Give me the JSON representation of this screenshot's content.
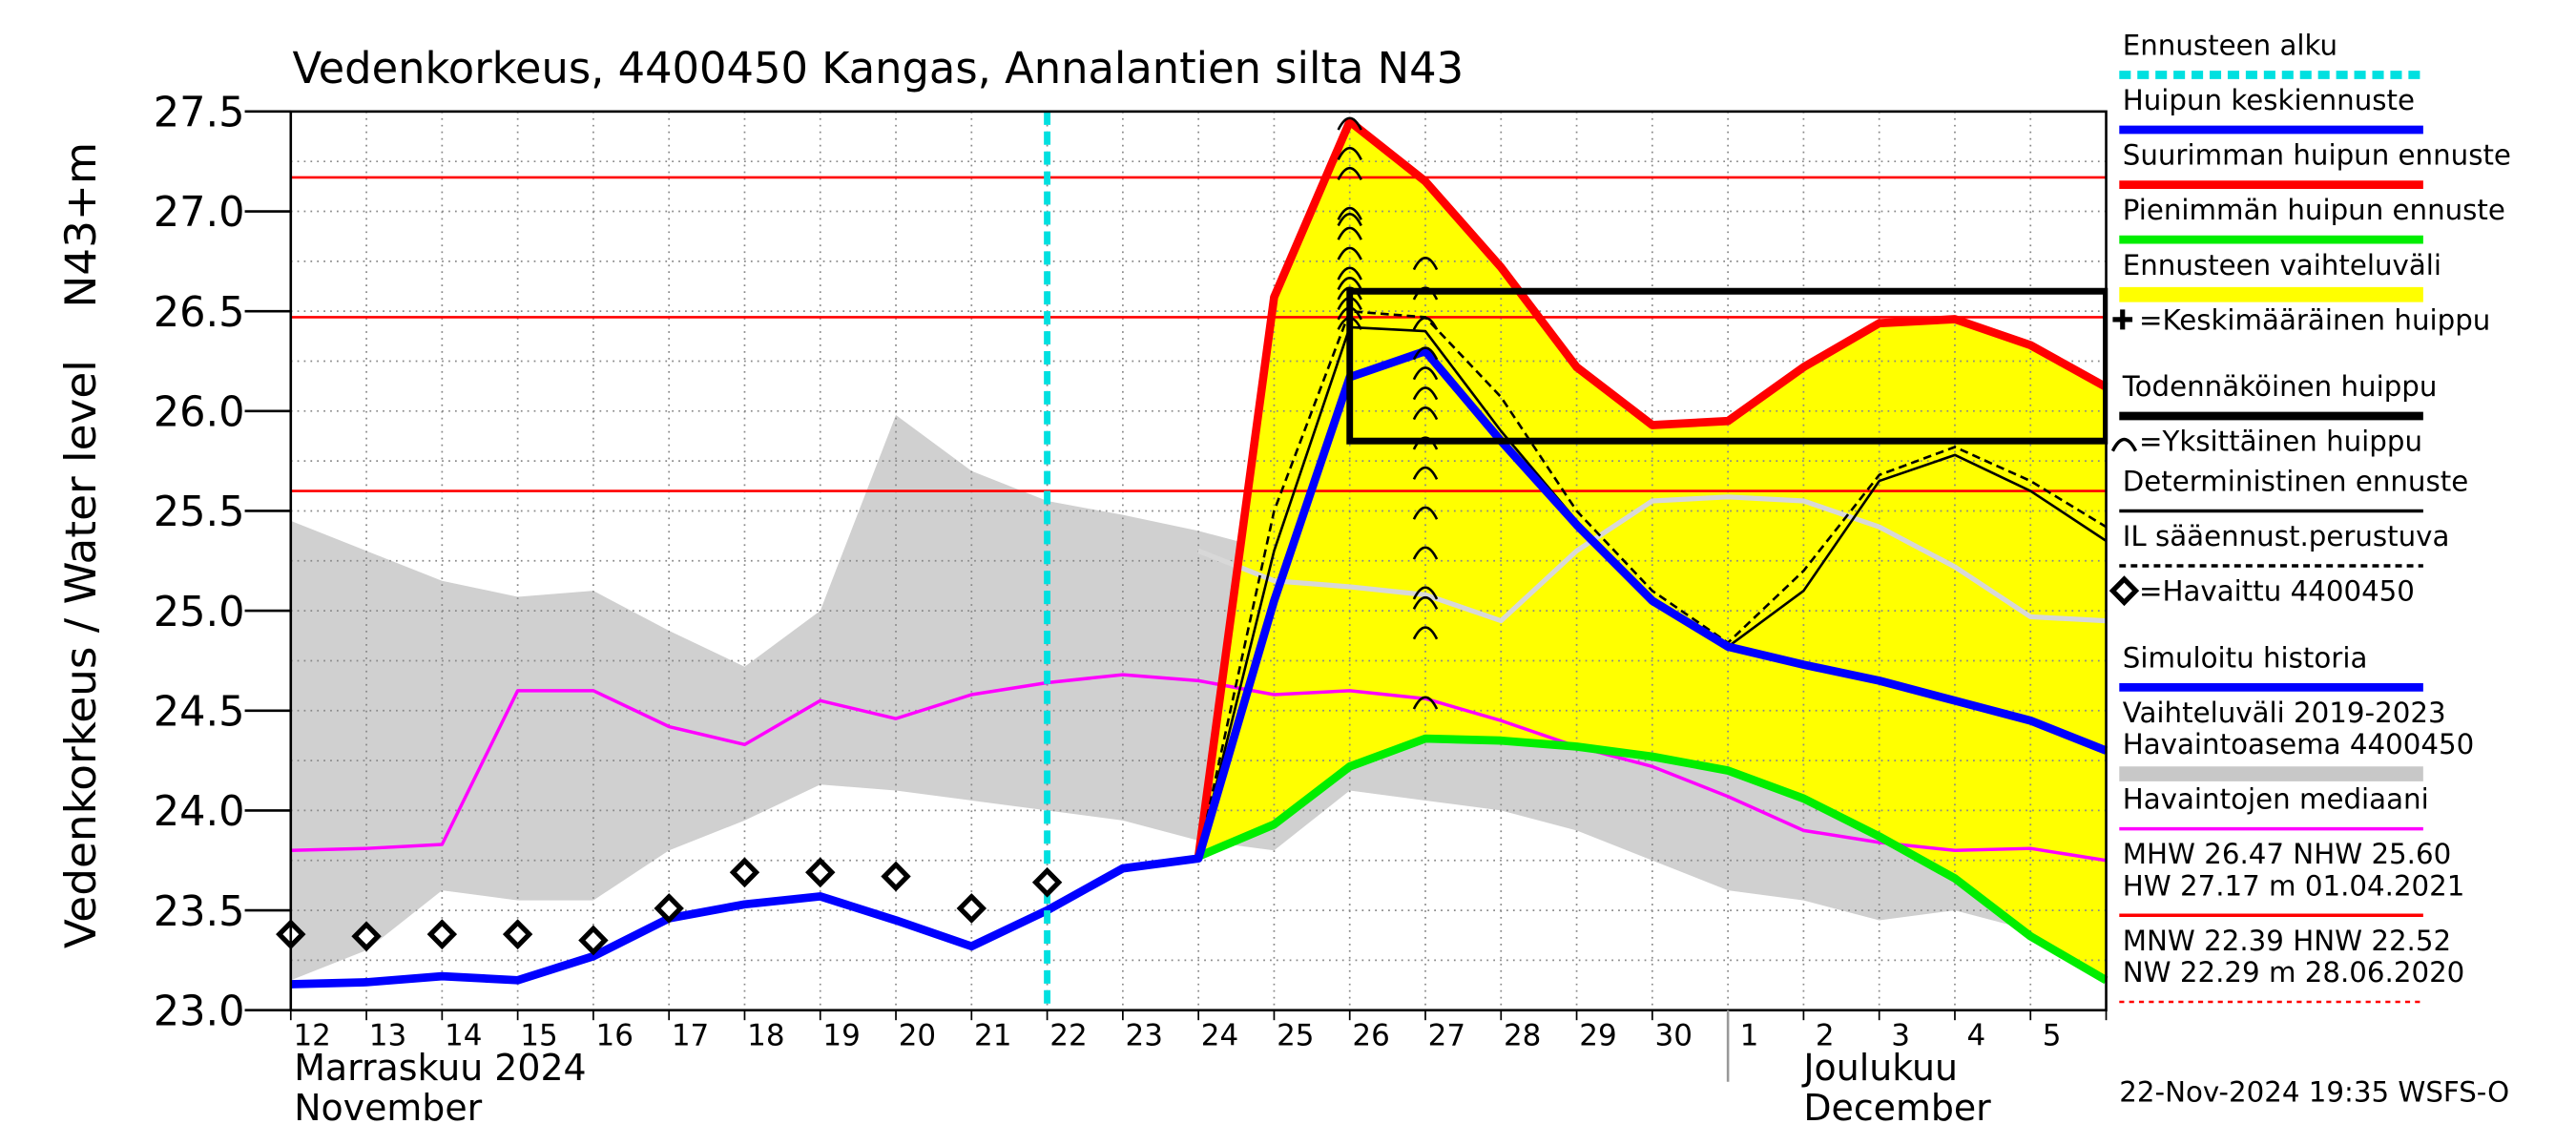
{
  "chart_data": {
    "type": "line",
    "title": "Vedenkorkeus, 4400450 Kangas, Annalantien silta N43",
    "ylabel": "Vedenkorkeus / Water level",
    "ylabel2": "N43+m",
    "categories": [
      "12",
      "13",
      "14",
      "15",
      "16",
      "17",
      "18",
      "19",
      "20",
      "21",
      "22",
      "23",
      "24",
      "25",
      "26",
      "27",
      "28",
      "29",
      "30",
      "1",
      "2",
      "3",
      "4",
      "5",
      null
    ],
    "month_labels": [
      {
        "lines": [
          "Marraskuu 2024",
          "November"
        ],
        "at": "12"
      },
      {
        "lines": [
          "Joulukuu",
          "December"
        ],
        "at": "2"
      }
    ],
    "ylim": [
      23.0,
      27.5
    ],
    "yticks": [
      {
        "value": 23.0,
        "label": "23.0"
      },
      23.5,
      {
        "value": 24.0,
        "label": "24.0"
      },
      24.5,
      {
        "value": 25.0,
        "label": "25.0"
      },
      25.5,
      {
        "value": 26.0,
        "label": "26.0"
      },
      26.5,
      {
        "value": 27.0,
        "label": "27.0"
      },
      27.5
    ],
    "grid": true,
    "forecast_start": "22",
    "forecast_color": "#00e0e0",
    "reference_lines": [
      27.17,
      26.47,
      25.6
    ],
    "reference_color": "#ff0000",
    "probable_peak": {
      "ylim": [
        25.85,
        26.6
      ],
      "from": "26"
    },
    "band": {
      "color": "#d0d0d0",
      "median_color": "#d8d8d8",
      "upper": [
        25.45,
        25.3,
        25.15,
        25.07,
        25.1,
        24.9,
        24.72,
        25.0,
        25.98,
        25.7,
        25.55,
        25.48,
        25.4,
        25.3,
        25.25,
        25.2,
        25.1,
        25.5,
        25.7,
        25.7,
        25.65,
        25.55,
        25.4,
        25.2,
        25.1
      ],
      "lower": [
        23.15,
        23.3,
        23.6,
        23.55,
        23.55,
        23.8,
        23.95,
        24.13,
        24.1,
        24.05,
        24.0,
        23.95,
        23.85,
        23.8,
        24.1,
        24.05,
        24.0,
        23.9,
        23.75,
        23.6,
        23.55,
        23.45,
        23.5,
        23.4,
        23.35
      ],
      "median": [
        null,
        null,
        null,
        null,
        null,
        null,
        null,
        null,
        null,
        null,
        null,
        null,
        25.3,
        25.15,
        25.12,
        25.08,
        24.95,
        25.3,
        25.55,
        25.57,
        25.55,
        25.42,
        25.22,
        24.97,
        24.95
      ]
    },
    "forecast_fill": "#ffff00",
    "series": [
      {
        "color": "#ff00ff",
        "values": [
          23.8,
          23.81,
          23.83,
          24.6,
          24.6,
          24.42,
          24.33,
          24.55,
          24.46,
          24.58,
          24.64,
          24.68,
          24.65,
          24.58,
          24.6,
          24.56,
          24.45,
          24.32,
          24.22,
          24.07,
          23.9,
          23.84,
          23.8,
          23.81,
          23.75
        ]
      },
      {
        "color": "#ff0000",
        "values": [
          null,
          null,
          null,
          null,
          null,
          null,
          null,
          null,
          null,
          null,
          null,
          null,
          23.77,
          26.57,
          27.45,
          27.15,
          26.72,
          26.22,
          25.93,
          25.95,
          26.22,
          26.44,
          26.46,
          26.33,
          26.12
        ]
      },
      {
        "color": "#00ee00",
        "values": [
          null,
          null,
          null,
          null,
          null,
          null,
          null,
          null,
          null,
          null,
          null,
          null,
          23.77,
          23.93,
          24.22,
          24.36,
          24.35,
          24.32,
          24.27,
          24.2,
          24.06,
          23.87,
          23.66,
          23.37,
          23.15
        ]
      },
      {
        "color": "#000000",
        "dashed": true,
        "values": [
          null,
          null,
          null,
          null,
          null,
          null,
          null,
          null,
          null,
          null,
          null,
          null,
          23.77,
          25.5,
          26.5,
          26.47,
          26.07,
          25.5,
          25.1,
          24.84,
          25.2,
          25.68,
          25.82,
          25.65,
          25.42
        ]
      },
      {
        "color": "#000000",
        "values": [
          null,
          null,
          null,
          null,
          null,
          null,
          null,
          null,
          null,
          null,
          null,
          null,
          23.77,
          25.3,
          26.42,
          26.4,
          25.9,
          25.45,
          25.05,
          24.82,
          25.1,
          25.65,
          25.78,
          25.6,
          25.35
        ]
      },
      {
        "color": "#0000ff",
        "values": [
          23.13,
          23.14,
          23.17,
          23.15,
          23.27,
          23.46,
          23.53,
          23.57,
          23.45,
          23.32,
          23.5,
          23.71,
          23.76,
          25.05,
          26.17,
          26.3,
          25.85,
          25.43,
          25.05,
          24.82,
          24.73,
          24.65,
          24.55,
          24.45,
          24.3
        ]
      }
    ],
    "observed": {
      "color": "#000000",
      "values": [
        23.38,
        23.37,
        23.38,
        23.38,
        23.35,
        23.51,
        23.69,
        23.69,
        23.67,
        23.51,
        23.64,
        null,
        null,
        null,
        null,
        null,
        null,
        null,
        null,
        null,
        null,
        null,
        null,
        null,
        null
      ]
    },
    "individual_peaks": [
      {
        "at": "26",
        "values": [
          27.45,
          27.3,
          27.2,
          27.0,
          26.97,
          26.9,
          26.8,
          26.7,
          26.65,
          26.6,
          26.55,
          26.5,
          26.45
        ]
      },
      {
        "at": "27",
        "values": [
          26.75,
          26.6,
          26.45,
          26.3,
          26.2,
          26.1,
          26.0,
          25.85,
          25.7,
          25.5,
          25.3,
          25.1,
          25.05,
          24.9,
          24.55
        ]
      }
    ],
    "legend": [
      {
        "lines": [
          "Ennusteen alku"
        ],
        "color": "#00e0e0",
        "style": "dashed-thick"
      },
      {
        "lines": [
          "Huipun keskiennuste"
        ],
        "color": "#0000ff",
        "style": "thick"
      },
      {
        "lines": [
          "Suurimman huipun ennuste"
        ],
        "color": "#ff0000",
        "style": "thick"
      },
      {
        "lines": [
          "Pienimmän huipun ennuste"
        ],
        "color": "#00ee00",
        "style": "thick"
      },
      {
        "lines": [
          "Ennusteen vaihteluväli"
        ],
        "color": "#ffff00",
        "style": "wide"
      },
      {
        "lines": [
          "=Keskimääräinen huippu"
        ],
        "color": "#000000",
        "style": "plus"
      },
      {
        "lines": [
          "Todennäköinen huippu"
        ],
        "color": "#000000",
        "style": "thick"
      },
      {
        "lines": [
          "=Yksittäinen huippu"
        ],
        "color": "#000000",
        "style": "arc"
      },
      {
        "lines": [
          "Deterministinen ennuste"
        ],
        "color": "#000000",
        "style": "thin"
      },
      {
        "lines": [
          "IL sääennust.perustuva"
        ],
        "color": "#000000",
        "style": "dashed"
      },
      {
        "lines": [
          "=Havaittu 4400450"
        ],
        "color": "#000000",
        "style": "diamond"
      },
      {
        "lines": [
          "Simuloitu historia"
        ],
        "color": "#0000ff",
        "style": "thick"
      },
      {
        "lines": [
          "Vaihteluväli 2019-2023",
          " Havaintoasema 4400450"
        ],
        "color": "#c8c8c8",
        "style": "wide"
      },
      {
        "lines": [
          "Havaintojen mediaani"
        ],
        "color": "#ff00ff",
        "style": "thin"
      },
      {
        "lines": [
          "MHW  26.47 NHW  25.60",
          "HW  27.17 m 01.04.2021"
        ],
        "color": "#ff0000",
        "style": "thin"
      },
      {
        "lines": [
          "MNW  22.39 HNW  22.52",
          "NW  22.29 m 28.06.2020"
        ],
        "color": "#ff0000",
        "style": "dotted"
      }
    ],
    "footer": "22-Nov-2024 19:35 WSFS-O"
  }
}
